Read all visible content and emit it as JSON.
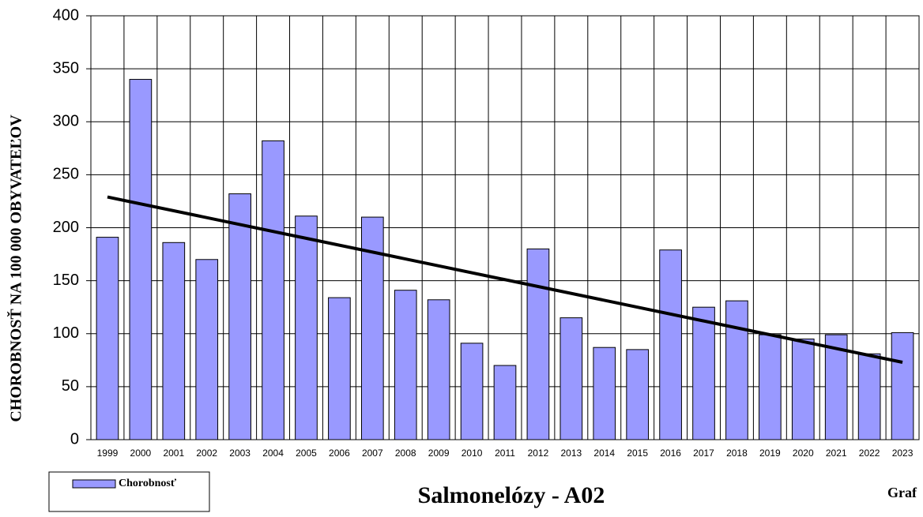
{
  "chart_data": {
    "type": "bar",
    "title": "Salmonelózy - A02",
    "note": "Graf",
    "y_label": "CHOROBNOSŤ NA 100 000 OBYVATEĽOV",
    "categories": [
      "1999",
      "2000",
      "2001",
      "2002",
      "2003",
      "2004",
      "2005",
      "2006",
      "2007",
      "2008",
      "2009",
      "2010",
      "2011",
      "2012",
      "2013",
      "2014",
      "2015",
      "2016",
      "2017",
      "2018",
      "2019",
      "2020",
      "2021",
      "2022",
      "2023"
    ],
    "series": [
      {
        "name": "Chorobnosť",
        "color": "#9999ff",
        "values": [
          191,
          340,
          186,
          170,
          232,
          282,
          211,
          134,
          210,
          141,
          132,
          91,
          70,
          180,
          115,
          87,
          85,
          179,
          125,
          131,
          99,
          95,
          99,
          81,
          101
        ]
      }
    ],
    "trendline": [
      229,
      73
    ],
    "ylim": [
      0,
      400
    ],
    "yticks": [
      0,
      50,
      100,
      150,
      200,
      250,
      300,
      350,
      400
    ],
    "grid": true
  }
}
